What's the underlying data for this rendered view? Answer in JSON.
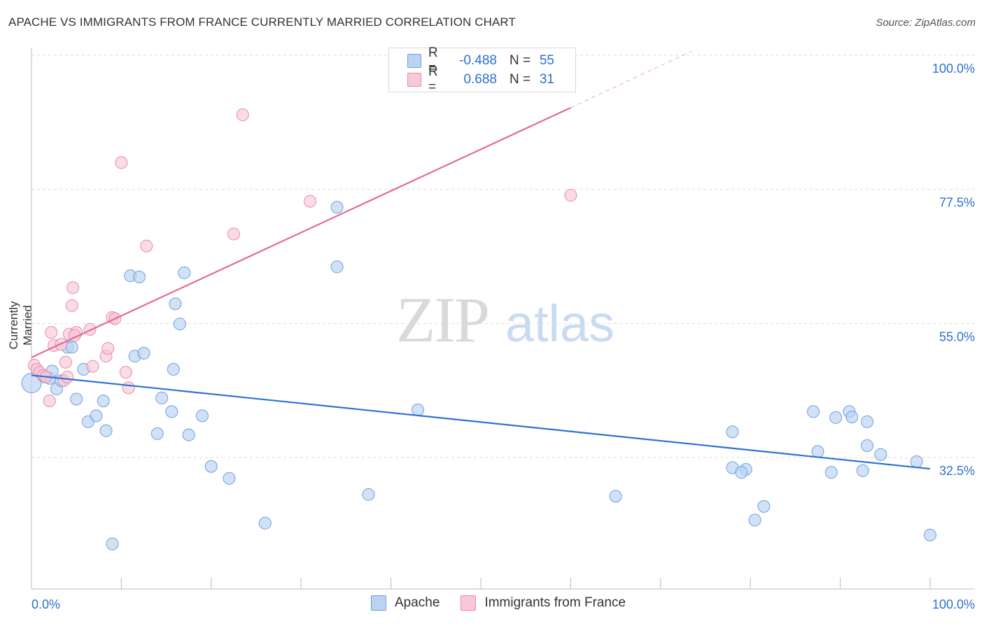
{
  "title": "APACHE VS IMMIGRANTS FROM FRANCE CURRENTLY MARRIED CORRELATION CHART",
  "source": "Source: ZipAtlas.com",
  "watermark": {
    "zip": "ZIP",
    "atlas": "atlas"
  },
  "legend": {
    "rows": [
      {
        "r_label": "R =",
        "r_value": "-0.488",
        "n_label": "N =",
        "n_value": "55",
        "color": "#b9d3f3",
        "border": "#6f9fdf"
      },
      {
        "r_label": "R =",
        "r_value": "0.688",
        "n_label": "N =",
        "n_value": "31",
        "color": "#f9c8d7",
        "border": "#e88aaa"
      }
    ]
  },
  "bottom_legend": [
    {
      "label": "Apache",
      "color": "#b9d3f3",
      "border": "#6f9fdf"
    },
    {
      "label": "Immigrants from France",
      "color": "#f9c8d7",
      "border": "#e88aaa"
    }
  ],
  "chart_data": {
    "type": "scatter",
    "title": "APACHE VS IMMIGRANTS FROM FRANCE CURRENTLY MARRIED CORRELATION CHART",
    "xlabel": "",
    "ylabel": "Currently Married",
    "xlim": [
      0,
      100
    ],
    "ylim": [
      10,
      100
    ],
    "x_tick_labels": {
      "left": "0.0%",
      "right": "100.0%"
    },
    "y_ticks": [
      {
        "value": 100.0,
        "label": "100.0%"
      },
      {
        "value": 77.5,
        "label": "77.5%"
      },
      {
        "value": 55.0,
        "label": "55.0%"
      },
      {
        "value": 32.5,
        "label": "32.5%"
      }
    ],
    "series": [
      {
        "name": "Apache",
        "color": "#b9d3f3",
        "edge": "#6f9fdf",
        "line_color": "#2f72d6",
        "trend": {
          "x0": 0,
          "y0": 46.3,
          "x1": 100,
          "y1": 30.6
        },
        "points": [
          [
            0.0,
            45.0
          ],
          [
            1.3,
            46.2
          ],
          [
            1.5,
            46.0
          ],
          [
            2.0,
            45.8
          ],
          [
            2.3,
            47.0
          ],
          [
            2.8,
            44.0
          ],
          [
            3.3,
            45.4
          ],
          [
            4.0,
            51.0
          ],
          [
            4.5,
            51.0
          ],
          [
            5.0,
            42.3
          ],
          [
            5.8,
            47.3
          ],
          [
            6.3,
            38.5
          ],
          [
            7.2,
            39.5
          ],
          [
            8.0,
            42.0
          ],
          [
            8.3,
            37.0
          ],
          [
            9.0,
            18.0
          ],
          [
            11.0,
            63.0
          ],
          [
            12.0,
            62.8
          ],
          [
            11.5,
            49.5
          ],
          [
            12.5,
            50.0
          ],
          [
            14.0,
            36.5
          ],
          [
            14.5,
            42.5
          ],
          [
            15.6,
            40.2
          ],
          [
            15.8,
            47.3
          ],
          [
            16.0,
            58.3
          ],
          [
            16.5,
            54.9
          ],
          [
            17.0,
            63.5
          ],
          [
            17.5,
            36.3
          ],
          [
            19.0,
            39.5
          ],
          [
            20.0,
            31.0
          ],
          [
            22.0,
            29.0
          ],
          [
            26.0,
            21.5
          ],
          [
            34.0,
            64.5
          ],
          [
            34.0,
            74.5
          ],
          [
            37.5,
            26.3
          ],
          [
            43.0,
            40.5
          ],
          [
            65.0,
            26.0
          ],
          [
            78.0,
            36.8
          ],
          [
            78.0,
            30.8
          ],
          [
            79.5,
            30.5
          ],
          [
            79.0,
            30.0
          ],
          [
            80.5,
            22.0
          ],
          [
            81.5,
            24.3
          ],
          [
            87.0,
            40.2
          ],
          [
            87.5,
            33.5
          ],
          [
            89.5,
            39.2
          ],
          [
            89.0,
            30.0
          ],
          [
            91.0,
            40.2
          ],
          [
            91.3,
            39.3
          ],
          [
            92.5,
            30.3
          ],
          [
            93.0,
            34.5
          ],
          [
            93.0,
            38.5
          ],
          [
            94.5,
            33.0
          ],
          [
            98.5,
            31.8
          ],
          [
            100.0,
            19.5
          ]
        ]
      },
      {
        "name": "Immigrants from France",
        "color": "#f9c8d7",
        "edge": "#e88aaa",
        "line_color": "#e36b93",
        "trend": {
          "x0": 0,
          "y0": 49.3,
          "x1": 60,
          "y1": 91.2
        },
        "trend_dashed": {
          "x0": 60,
          "y0": 91.2,
          "x1": 73.5,
          "y1": 100.7
        },
        "points": [
          [
            0.3,
            48.0
          ],
          [
            0.6,
            47.3
          ],
          [
            0.9,
            46.8
          ],
          [
            1.3,
            46.3
          ],
          [
            1.6,
            46.0
          ],
          [
            2.0,
            42.0
          ],
          [
            2.2,
            53.5
          ],
          [
            2.5,
            51.3
          ],
          [
            3.3,
            51.5
          ],
          [
            3.6,
            45.4
          ],
          [
            3.8,
            48.5
          ],
          [
            4.0,
            46.0
          ],
          [
            4.2,
            53.2
          ],
          [
            4.5,
            58.0
          ],
          [
            4.6,
            61.0
          ],
          [
            5.0,
            53.5
          ],
          [
            6.5,
            54.0
          ],
          [
            6.8,
            47.8
          ],
          [
            8.3,
            49.5
          ],
          [
            8.5,
            50.8
          ],
          [
            9.0,
            56.0
          ],
          [
            9.3,
            55.8
          ],
          [
            10.0,
            82.0
          ],
          [
            10.5,
            46.8
          ],
          [
            10.8,
            44.2
          ],
          [
            12.8,
            68.0
          ],
          [
            22.5,
            70.0
          ],
          [
            23.5,
            90.0
          ],
          [
            31.0,
            75.5
          ],
          [
            60.0,
            76.5
          ],
          [
            4.8,
            53.0
          ]
        ]
      }
    ]
  }
}
